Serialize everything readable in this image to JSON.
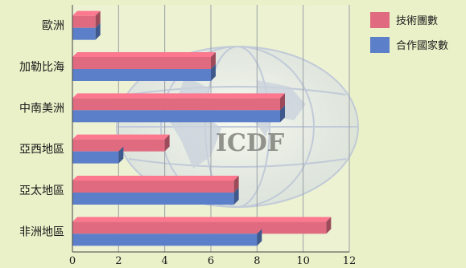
{
  "chart_data": {
    "type": "bar",
    "orientation": "horizontal",
    "style": "3d",
    "categories": [
      "歐洲",
      "加勒比海",
      "中南美洲",
      "亞西地區",
      "亞太地區",
      "非洲地區"
    ],
    "series": [
      {
        "name": "技術團數",
        "color": "#e06b80",
        "values": [
          1,
          6,
          9,
          4,
          7,
          11
        ]
      },
      {
        "name": "合作國家數",
        "color": "#5b7fc9",
        "values": [
          1,
          6,
          9,
          2,
          7,
          8
        ]
      }
    ],
    "xticks": [
      "0",
      "2",
      "4",
      "6",
      "8",
      "10",
      "12"
    ],
    "xlim": [
      0,
      12
    ],
    "grid": true,
    "legend": "top-right",
    "watermark_text": "ICDF"
  }
}
